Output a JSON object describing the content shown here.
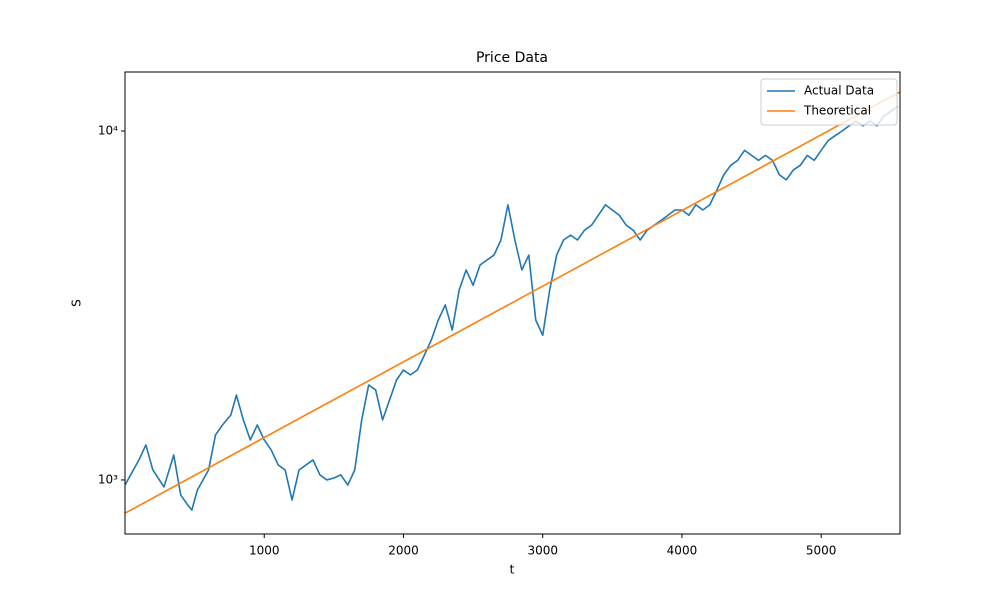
{
  "chart_data": {
    "type": "line",
    "title": "Price Data",
    "x_label": "t",
    "y_label": "S",
    "log_y": true,
    "legend": "upper right",
    "xlim": [
      0,
      5566
    ],
    "xticks": [
      1000,
      2000,
      3000,
      4000,
      5000
    ],
    "ylim": [
      700,
      14760
    ],
    "yticks": [
      {
        "value": 1000,
        "label": "10³"
      },
      {
        "value": 10000,
        "label": "10⁴"
      }
    ],
    "series": [
      {
        "name": "Actual Data",
        "color": "#1f77b4",
        "x": [
          0,
          100,
          150,
          200,
          280,
          350,
          400,
          450,
          480,
          520,
          600,
          650,
          700,
          760,
          800,
          850,
          900,
          950,
          1000,
          1050,
          1100,
          1150,
          1200,
          1250,
          1300,
          1350,
          1400,
          1450,
          1500,
          1550,
          1600,
          1650,
          1700,
          1750,
          1800,
          1850,
          1900,
          1950,
          2000,
          2050,
          2100,
          2150,
          2200,
          2250,
          2300,
          2350,
          2400,
          2450,
          2500,
          2550,
          2600,
          2650,
          2700,
          2750,
          2800,
          2850,
          2900,
          2950,
          3000,
          3050,
          3100,
          3150,
          3200,
          3250,
          3300,
          3350,
          3400,
          3450,
          3500,
          3550,
          3600,
          3650,
          3700,
          3750,
          3800,
          3850,
          3900,
          3950,
          4000,
          4050,
          4100,
          4150,
          4200,
          4250,
          4300,
          4350,
          4400,
          4450,
          4500,
          4550,
          4600,
          4650,
          4700,
          4750,
          4800,
          4850,
          4900,
          4950,
          5000,
          5050,
          5100,
          5150,
          5200,
          5250,
          5300,
          5350,
          5400,
          5450,
          5500,
          5550
        ],
        "values": [
          967,
          1141,
          1260,
          1068,
          955,
          1179,
          906,
          848,
          820,
          936,
          1068,
          1346,
          1437,
          1535,
          1751,
          1486,
          1302,
          1437,
          1302,
          1219,
          1104,
          1068,
          876,
          1068,
          1104,
          1141,
          1034,
          1000,
          1013,
          1034,
          967,
          1068,
          1486,
          1871,
          1811,
          1486,
          1695,
          1934,
          2066,
          2000,
          2066,
          2279,
          2517,
          2873,
          3174,
          2689,
          3503,
          3997,
          3613,
          4131,
          4268,
          4410,
          4871,
          6146,
          4871,
          3997,
          4410,
          2873,
          2597,
          3503,
          4410,
          4871,
          5031,
          4871,
          5197,
          5368,
          5736,
          6146,
          5938,
          5736,
          5368,
          5197,
          4871,
          5197,
          5368,
          5546,
          5736,
          5938,
          5938,
          5736,
          6146,
          5938,
          6146,
          6757,
          7486,
          7974,
          8240,
          8802,
          8514,
          8240,
          8514,
          8240,
          7486,
          7245,
          7736,
          7974,
          8514,
          8240,
          8802,
          9389,
          9696,
          10000,
          10345,
          10681,
          10345,
          10681,
          10345,
          11031,
          11391,
          11763
        ]
      },
      {
        "name": "Theoretical",
        "color": "#ff7f0e",
        "x": [
          0,
          5566
        ],
        "values": [
          803,
          12940
        ]
      }
    ]
  }
}
